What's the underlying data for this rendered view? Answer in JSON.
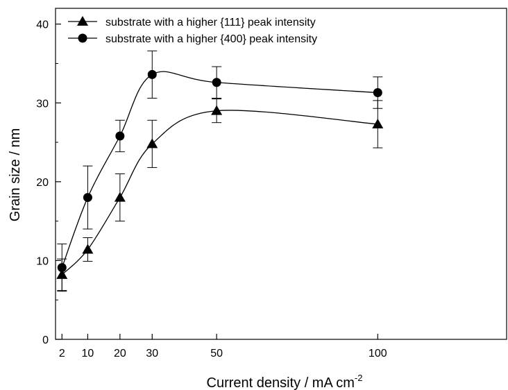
{
  "chart_data": {
    "type": "line",
    "title": "",
    "xlabel": "Current density / mA cm",
    "xlabel_superscript": "-2",
    "ylabel": "Grain size / nm",
    "xlim": [
      0,
      140
    ],
    "ylim": [
      0,
      42
    ],
    "x_ticks": [
      2,
      10,
      20,
      30,
      50,
      100
    ],
    "y_ticks": [
      0,
      10,
      20,
      30,
      40
    ],
    "grid": false,
    "legend_position": "top-left",
    "series": [
      {
        "name": "substrate with a higher {111} peak intensity",
        "marker": "triangle",
        "color": "#000000",
        "x": [
          2,
          10,
          20,
          30,
          50,
          100
        ],
        "y": [
          8.2,
          11.4,
          18.0,
          24.8,
          29.0,
          27.3
        ],
        "err": [
          2.0,
          1.5,
          3.0,
          3.0,
          1.5,
          3.0
        ]
      },
      {
        "name": "substrate with a higher {400} peak intensity",
        "marker": "circle",
        "color": "#000000",
        "x": [
          2,
          10,
          20,
          30,
          50,
          100
        ],
        "y": [
          9.1,
          18.0,
          25.8,
          33.6,
          32.6,
          31.3
        ],
        "err": [
          3.0,
          4.0,
          2.0,
          3.0,
          2.0,
          2.0
        ]
      }
    ]
  }
}
